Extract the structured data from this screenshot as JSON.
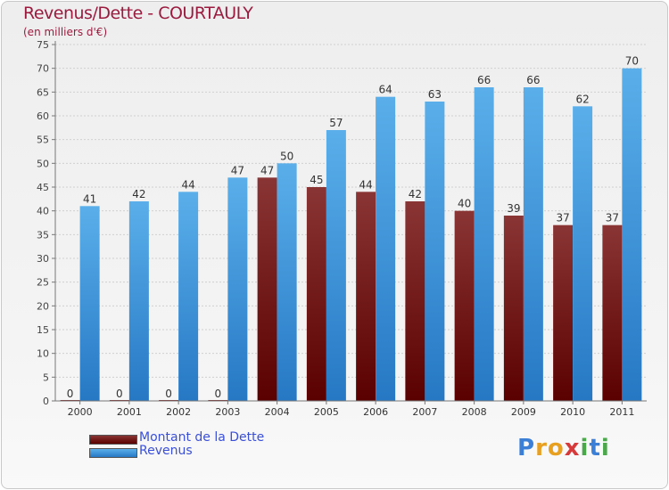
{
  "chart_data": {
    "type": "bar",
    "title": "Revenus/Dette - COURTAULY",
    "subtitle": "(en milliers d'€)",
    "categories": [
      "2000",
      "2001",
      "2002",
      "2003",
      "2004",
      "2005",
      "2006",
      "2007",
      "2008",
      "2009",
      "2010",
      "2011"
    ],
    "series": [
      {
        "name": "Montant de la Dette",
        "color": "#6e0a14",
        "values": [
          0,
          0,
          0,
          0,
          47,
          45,
          44,
          42,
          40,
          39,
          37,
          37
        ]
      },
      {
        "name": "Revenus",
        "color": "#3d98e0",
        "values": [
          41,
          42,
          44,
          47,
          50,
          57,
          64,
          63,
          66,
          66,
          62,
          70
        ]
      }
    ],
    "ylim": [
      0,
      75
    ],
    "ytick_step": 5,
    "grid": true,
    "legend_position": "bottom-left"
  },
  "brand": {
    "letters": [
      "P",
      "r",
      "o",
      "x",
      "i",
      "t",
      "i"
    ],
    "colors": [
      "#3b7fd6",
      "#e8a020",
      "#e8a020",
      "#d63b3b",
      "#4aa84a",
      "#3b7fd6",
      "#4aa84a"
    ]
  }
}
